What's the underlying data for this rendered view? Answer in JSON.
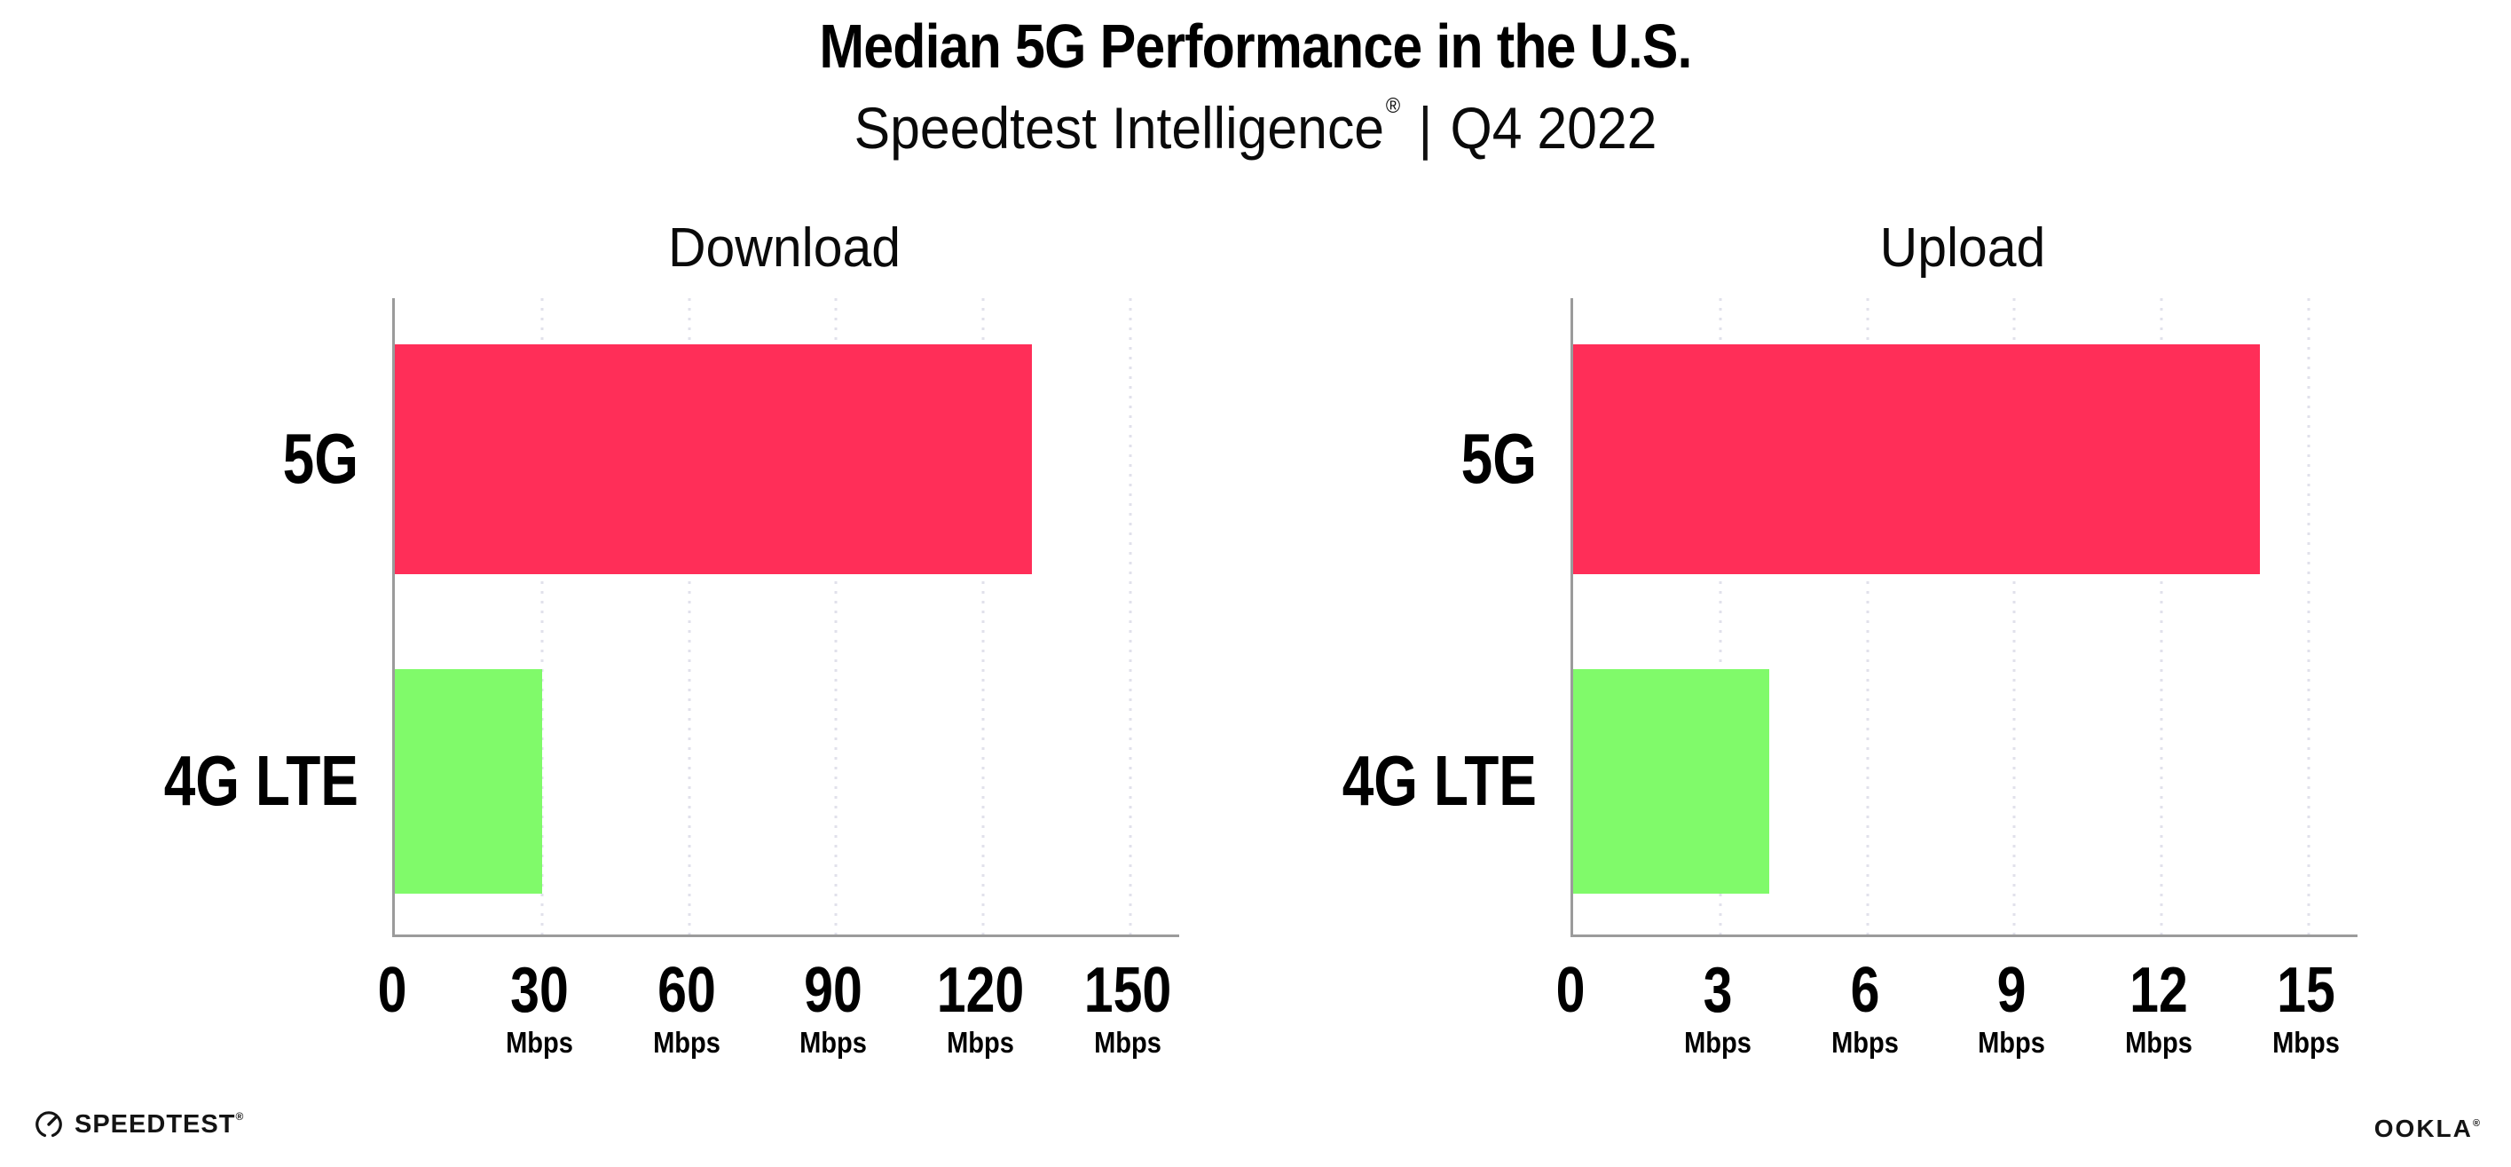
{
  "page": {
    "title": "Median 5G Performance in the U.S.",
    "subtitle": {
      "brand": "Speedtest Intelligence",
      "registered": "®",
      "separator": "|",
      "period": "Q4 2022"
    }
  },
  "colors": {
    "bar_5g": "#ff2e58",
    "bar_4g_lte": "#80fa6a",
    "axis": "#9b9b9b",
    "gridline": "#e1e1eb",
    "text": "#000000",
    "background": "#ffffff"
  },
  "footer": {
    "speedtest": {
      "label": "SPEEDTEST",
      "mark": "®",
      "icon": "speedometer-gauge-icon"
    },
    "ookla": {
      "label": "OOKLA",
      "mark": "®"
    }
  },
  "chart_data": [
    {
      "type": "bar",
      "orientation": "horizontal",
      "title": "Download",
      "categories": [
        "5G",
        "4G LTE"
      ],
      "values": [
        130,
        30
      ],
      "value_unit": "Mbps",
      "xlim": [
        0,
        160
      ],
      "xticks": [
        0,
        30,
        60,
        90,
        120,
        150
      ],
      "tick_unit": "Mbps",
      "bar_colors": [
        "#ff2e58",
        "#80fa6a"
      ],
      "grid": "vertical-dotted",
      "legend": "none"
    },
    {
      "type": "bar",
      "orientation": "horizontal",
      "title": "Upload",
      "categories": [
        "5G",
        "4G LTE"
      ],
      "values": [
        14,
        4
      ],
      "value_unit": "Mbps",
      "xlim": [
        0,
        16
      ],
      "xticks": [
        0,
        3,
        6,
        9,
        12,
        15
      ],
      "tick_unit": "Mbps",
      "bar_colors": [
        "#ff2e58",
        "#80fa6a"
      ],
      "grid": "vertical-dotted",
      "legend": "none"
    }
  ]
}
